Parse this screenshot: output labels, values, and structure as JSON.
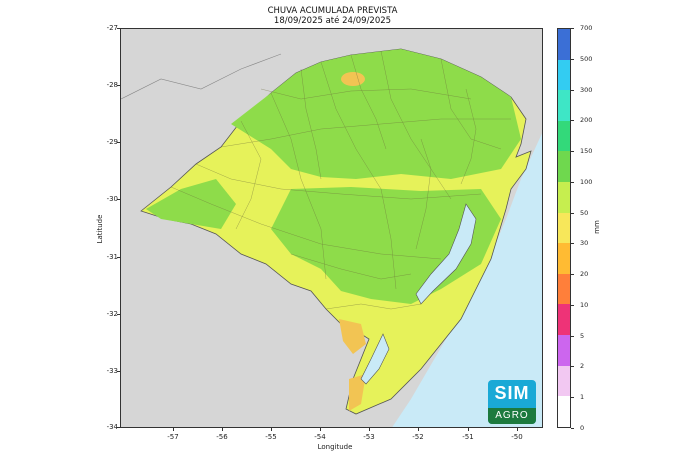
{
  "title_line1": "CHUVA ACUMULADA PREVISTA",
  "title_line2": "18/09/2025 até 24/09/2025",
  "x_axis": {
    "label": "Longitude",
    "ticks": [
      "-57",
      "-56",
      "-55",
      "-54",
      "-53",
      "-52",
      "-51",
      "-50"
    ],
    "range": [
      -57.8,
      -49.6
    ]
  },
  "y_axis": {
    "label": "Latitude",
    "ticks": [
      "-27",
      "-28",
      "-29",
      "-30",
      "-31",
      "-32",
      "-33",
      "-34"
    ],
    "range": [
      -34,
      -27
    ]
  },
  "colorbar": {
    "unit": "mm",
    "levels": [
      "0",
      "1",
      "2",
      "5",
      "10",
      "20",
      "30",
      "50",
      "100",
      "150",
      "200",
      "300",
      "500",
      "700"
    ],
    "colors": [
      "#ffffff",
      "#f2c8f2",
      "#cc66ee",
      "#ee3377",
      "#ff7f3a",
      "#ffbb33",
      "#f7e75a",
      "#c6ee4f",
      "#6fd84e",
      "#33d97a",
      "#3ee6c6",
      "#33ccf2",
      "#3b6fd6",
      "#3b3faa"
    ]
  },
  "colors": {
    "ocean": "#c9eaf7",
    "neighbors": "#d6d6d6",
    "rain_30_50": "#e6f25a",
    "rain_50_100": "#8edc4a",
    "rain_20_30": "#f2c453"
  },
  "logo": {
    "line1": "SIM",
    "line2": "AGRO"
  }
}
